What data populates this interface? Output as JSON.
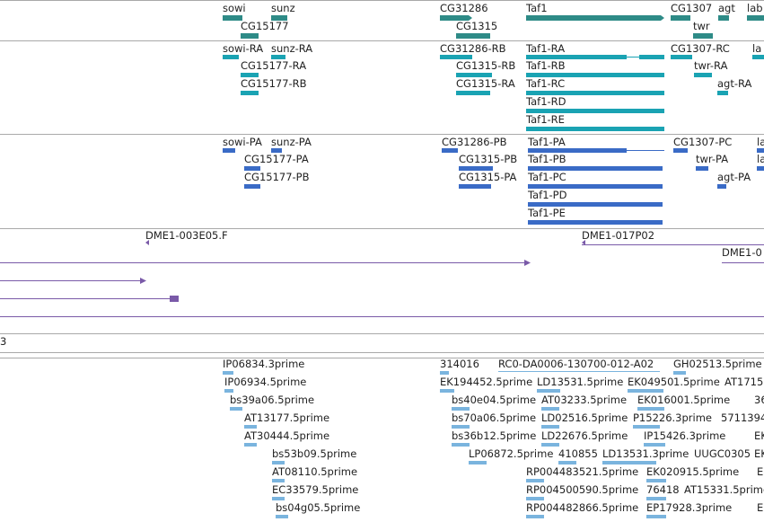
{
  "colors": {
    "gene": "#2e8b87",
    "transcript": "#1aa3b3",
    "protein": "#3a6bc6",
    "clone": "#7a5aa8",
    "est": "#7ab4de",
    "separator": "#a9a9a9"
  },
  "genes": [
    "sowi",
    "sunz",
    "CG15177",
    "CG31286",
    "CG1315",
    "Taf1",
    "CG1307",
    "agt",
    "twr",
    "lab"
  ],
  "transcripts": [
    "sowi-RA",
    "sunz-RA",
    "CG15177-RA",
    "CG15177-RB",
    "CG31286-RB",
    "CG1315-RB",
    "CG1315-RA",
    "Taf1-RA",
    "Taf1-RB",
    "Taf1-RC",
    "Taf1-RD",
    "Taf1-RE",
    "CG1307-RC",
    "twr-RA",
    "agt-RA",
    "la"
  ],
  "proteins": [
    "sowi-PA",
    "sunz-PA",
    "CG15177-PA",
    "CG15177-PB",
    "CG31286-PB",
    "CG1315-PB",
    "CG1315-PA",
    "Taf1-PA",
    "Taf1-PB",
    "Taf1-PC",
    "Taf1-PD",
    "Taf1-PE",
    "CG1307-PC",
    "twr-PA",
    "agt-PA",
    "la",
    "la"
  ],
  "clones": [
    "DME1-003E05.F",
    "DME1-017P02",
    "DME1-0"
  ],
  "track_fragment": "3",
  "ests": [
    "IP06834.3prime",
    "IP06934.5prime",
    "bs39a06.5prime",
    "AT13177.5prime",
    "AT30444.5prime",
    "bs53b09.5prime",
    "AT08110.5prime",
    "EC33579.5prime",
    "bs04g05.5prime",
    "314016",
    "RC0-DA0006-130700-012-A02",
    "GH02513.5prime",
    "EK194452.5prime",
    "LD13531.5prime",
    "EK04950",
    "1.5prime",
    "AT1715",
    "bs40e04.5prime",
    "AT03233.5prime",
    "EK016001.5prime",
    "36",
    "bs70a06.5prime",
    "LD02516.5prime",
    "P15226.3prime",
    "5711394",
    "bs36b12.5prime",
    "LD22676.5prime",
    "IP15426.3prime",
    "EK",
    "LP06872.5prime",
    "410855",
    "LD13531.3prime",
    "UUGC0305",
    "EK",
    "RP004483521.5prime",
    "EK020915.5prime",
    "EK",
    "RP004500590.5prime",
    "76418",
    "AT15331.5prime",
    "RP004482866.5prime",
    "EP17928.3prime",
    "E"
  ]
}
